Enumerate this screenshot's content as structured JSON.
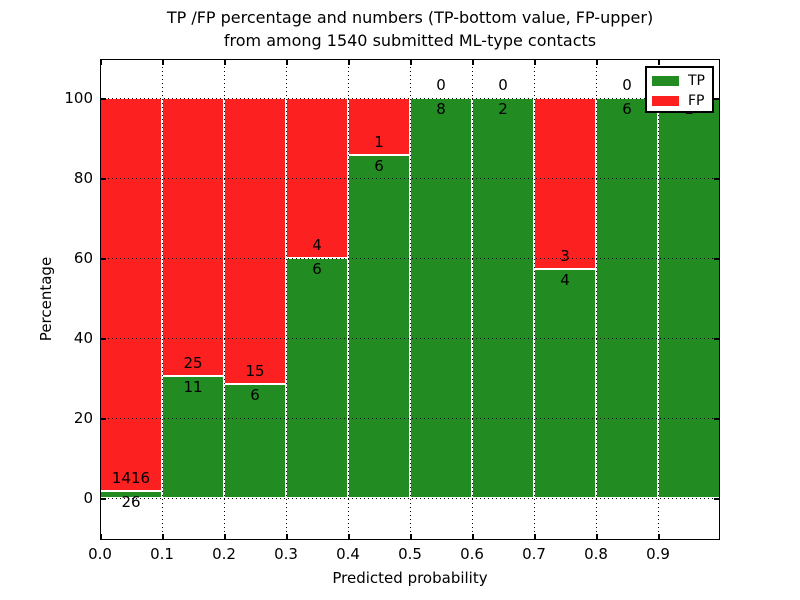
{
  "chart_data": {
    "type": "bar",
    "stacked": true,
    "title_line1": "TP /FP percentage and numbers (TP-bottom value, FP-upper)",
    "title_line2": "from among 1540 submitted ML-type contacts",
    "xlabel": "Predicted probability",
    "ylabel": "Percentage",
    "total_contacts": 1540,
    "xlim": [
      0.0,
      1.0
    ],
    "ylim": [
      -10,
      110
    ],
    "bin_width": 0.1,
    "bin_edges": [
      0.0,
      0.1,
      0.2,
      0.3,
      0.4,
      0.5,
      0.6,
      0.7,
      0.8,
      0.9,
      1.0
    ],
    "x_tick_labels": [
      "0.0",
      "0.1",
      "0.2",
      "0.3",
      "0.4",
      "0.5",
      "0.6",
      "0.7",
      "0.8",
      "0.9"
    ],
    "y_tick_values": [
      0,
      20,
      40,
      60,
      80,
      100
    ],
    "y_tick_labels": [
      "0",
      "20",
      "40",
      "60",
      "80",
      "100"
    ],
    "grid": true,
    "bar_value_unit": "percent of bin total",
    "series": [
      {
        "name": "TP",
        "color": "#228B22",
        "counts": [
          26,
          11,
          6,
          6,
          6,
          8,
          2,
          4,
          6,
          1
        ]
      },
      {
        "name": "FP",
        "color": "#FC2020",
        "counts": [
          1416,
          25,
          15,
          4,
          1,
          0,
          0,
          3,
          0,
          0
        ]
      }
    ],
    "tp_percent_per_bin": [
      1.8,
      30.6,
      28.6,
      60.0,
      85.7,
      100.0,
      100.0,
      57.1,
      100.0,
      100.0
    ],
    "legend": {
      "position": "upper right",
      "entries": [
        {
          "label": "TP",
          "color": "#228B22"
        },
        {
          "label": "FP",
          "color": "#FC2020"
        }
      ]
    },
    "colors": {
      "bar_edge": "#FFFFFF",
      "grid": "#000000",
      "text": "#000000",
      "background": "#FFFFFF"
    }
  }
}
